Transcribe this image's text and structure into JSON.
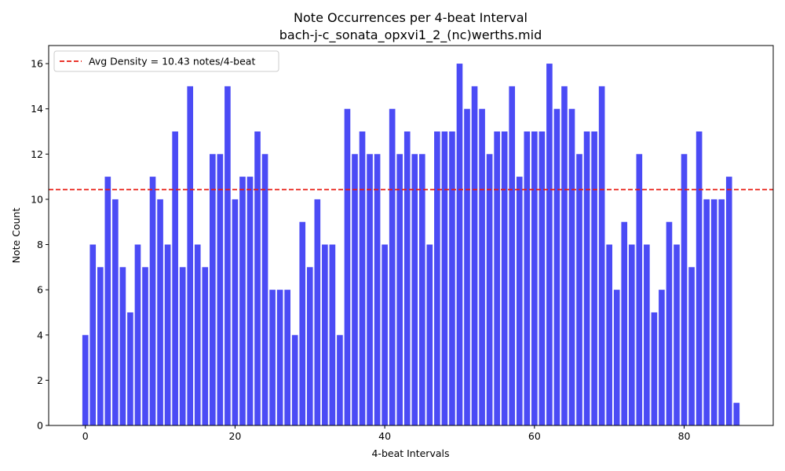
{
  "chart_data": {
    "type": "bar",
    "title": "Note Occurrences per 4-beat Interval",
    "subtitle": "bach-j-c_sonata_opxvi1_2_(nc)werths.mid",
    "xlabel": "4-beat Intervals",
    "ylabel": "Note Count",
    "xlim": [
      -4.9,
      91.9
    ],
    "ylim": [
      0,
      16.8
    ],
    "xticks": [
      0,
      20,
      40,
      60,
      80
    ],
    "yticks": [
      0,
      2,
      4,
      6,
      8,
      10,
      12,
      14,
      16
    ],
    "x": [
      0,
      1,
      2,
      3,
      4,
      5,
      6,
      7,
      8,
      9,
      10,
      11,
      12,
      13,
      14,
      15,
      16,
      17,
      18,
      19,
      20,
      21,
      22,
      23,
      24,
      25,
      26,
      27,
      28,
      29,
      30,
      31,
      32,
      33,
      34,
      35,
      36,
      37,
      38,
      39,
      40,
      41,
      42,
      43,
      44,
      45,
      46,
      47,
      48,
      49,
      50,
      51,
      52,
      53,
      54,
      55,
      56,
      57,
      58,
      59,
      60,
      61,
      62,
      63,
      64,
      65,
      66,
      67,
      68,
      69,
      70,
      71,
      72,
      73,
      74,
      75,
      76,
      77,
      78,
      79,
      80,
      81,
      82,
      83,
      84,
      85,
      86,
      87
    ],
    "values": [
      4,
      8,
      7,
      11,
      10,
      7,
      5,
      8,
      7,
      11,
      10,
      8,
      13,
      7,
      15,
      8,
      7,
      12,
      12,
      15,
      10,
      11,
      11,
      13,
      12,
      6,
      6,
      6,
      4,
      9,
      7,
      10,
      8,
      8,
      4,
      14,
      12,
      13,
      12,
      12,
      8,
      14,
      12,
      13,
      12,
      12,
      8,
      13,
      13,
      13,
      16,
      14,
      15,
      14,
      12,
      13,
      13,
      15,
      11,
      13,
      13,
      13,
      16,
      14,
      15,
      14,
      12,
      13,
      13,
      15,
      8,
      6,
      9,
      8,
      12,
      8,
      5,
      6,
      9,
      8,
      12,
      7,
      13,
      10,
      10,
      10,
      11,
      1
    ],
    "bar_color": "#4b4bf5",
    "average_line": {
      "value": 10.43,
      "label": "Avg Density = 10.43 notes/4-beat",
      "color": "#e8190f",
      "style": "dashed"
    },
    "legend_position": "top-left",
    "grid": false
  }
}
